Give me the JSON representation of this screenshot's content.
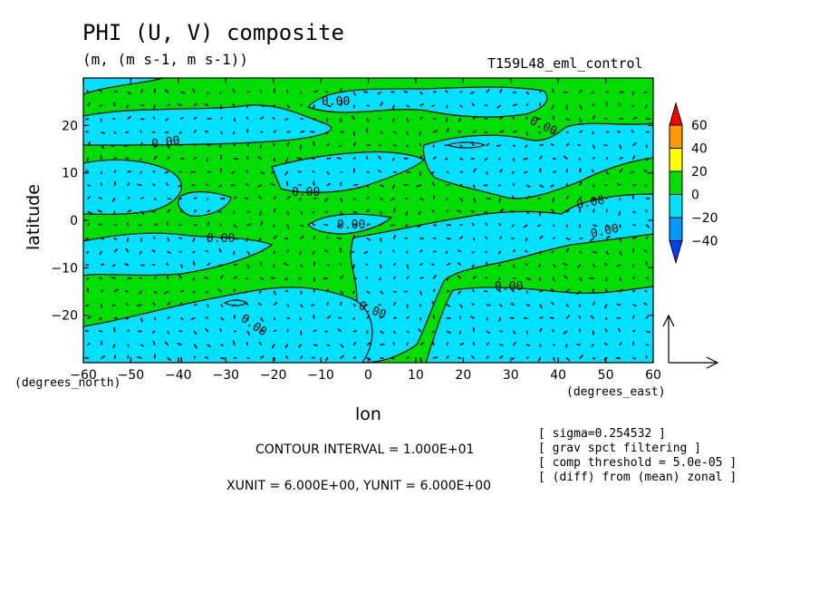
{
  "chart_data": {
    "type": "contour-vector",
    "title": "PHI (U, V) composite",
    "subtitle": "(m, (m s-1, m s-1))",
    "run_name": "T159L48_eml_control",
    "xlabel": "lon",
    "ylabel": "latitude",
    "x_unit_label": "(degrees_east)",
    "y_unit_label": "(degrees_north)",
    "x_ticks": [
      -60,
      -50,
      -40,
      -30,
      -20,
      -10,
      0,
      10,
      20,
      30,
      40,
      50,
      60
    ],
    "y_ticks": [
      20,
      10,
      0,
      -10,
      -20
    ],
    "xlim": [
      -60,
      60
    ],
    "ylim": [
      -30,
      30
    ],
    "contour_labels": [
      "0.00",
      "0.00",
      "0.00",
      "0.00",
      "0.00",
      "0.00",
      "0.00",
      "0.00",
      "0.00",
      "0.00",
      "0.00",
      "0.00"
    ],
    "colorbar": {
      "levels": [
        "60",
        "40",
        "20",
        "0",
        "-20",
        "-40"
      ],
      "colors": [
        "#ff0000",
        "#ff9900",
        "#ffff00",
        "#00dd00",
        "#00e0ff",
        "#0099ff",
        "#0040ff"
      ]
    },
    "fill_colors": {
      "positive": "#00dd00",
      "negative": "#00e0ff"
    },
    "contour_interval_text": "CONTOUR INTERVAL = 1.000E+01",
    "unit_vector_text": "XUNIT = 6.000E+00, YUNIT = 6.000E+00",
    "notes": [
      "[ sigma=0.254532 ]",
      "[ grav spct filtering ]",
      "[ comp threshold = 5.0e-05 ]",
      "[ (diff) from (mean) zonal ]"
    ]
  }
}
